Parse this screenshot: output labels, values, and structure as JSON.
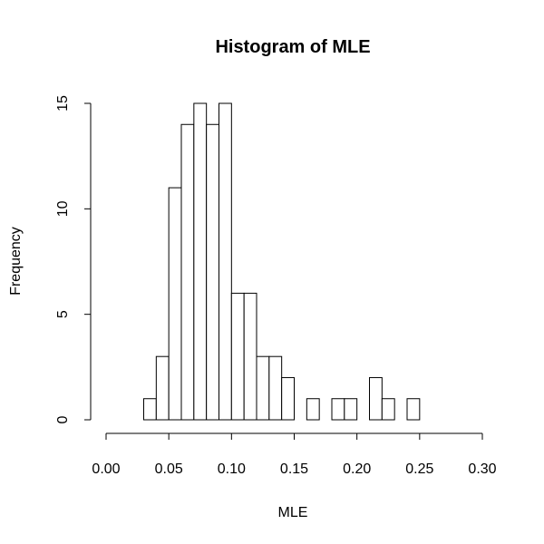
{
  "chart_data": {
    "type": "bar",
    "title": "Histogram of MLE",
    "xlabel": "MLE",
    "ylabel": "Frequency",
    "xlim": [
      0.0,
      0.3
    ],
    "ylim": [
      0,
      15
    ],
    "x_ticks": [
      "0.00",
      "0.05",
      "0.10",
      "0.15",
      "0.20",
      "0.25",
      "0.30"
    ],
    "y_ticks": [
      "0",
      "5",
      "10",
      "15"
    ],
    "bin_width": 0.01,
    "bins": [
      {
        "start": 0.03,
        "end": 0.04,
        "count": 1
      },
      {
        "start": 0.04,
        "end": 0.05,
        "count": 3
      },
      {
        "start": 0.05,
        "end": 0.06,
        "count": 11
      },
      {
        "start": 0.06,
        "end": 0.07,
        "count": 14
      },
      {
        "start": 0.07,
        "end": 0.08,
        "count": 15
      },
      {
        "start": 0.08,
        "end": 0.09,
        "count": 14
      },
      {
        "start": 0.09,
        "end": 0.1,
        "count": 15
      },
      {
        "start": 0.1,
        "end": 0.11,
        "count": 6
      },
      {
        "start": 0.11,
        "end": 0.12,
        "count": 6
      },
      {
        "start": 0.12,
        "end": 0.13,
        "count": 3
      },
      {
        "start": 0.13,
        "end": 0.14,
        "count": 3
      },
      {
        "start": 0.14,
        "end": 0.15,
        "count": 2
      },
      {
        "start": 0.15,
        "end": 0.16,
        "count": 0
      },
      {
        "start": 0.16,
        "end": 0.17,
        "count": 1
      },
      {
        "start": 0.17,
        "end": 0.18,
        "count": 0
      },
      {
        "start": 0.18,
        "end": 0.19,
        "count": 1
      },
      {
        "start": 0.19,
        "end": 0.2,
        "count": 1
      },
      {
        "start": 0.2,
        "end": 0.21,
        "count": 0
      },
      {
        "start": 0.21,
        "end": 0.22,
        "count": 2
      },
      {
        "start": 0.22,
        "end": 0.23,
        "count": 1
      },
      {
        "start": 0.23,
        "end": 0.24,
        "count": 0
      },
      {
        "start": 0.24,
        "end": 0.25,
        "count": 1
      }
    ],
    "bar_fill": "#ffffff",
    "bar_stroke": "#000000",
    "grid": false
  }
}
